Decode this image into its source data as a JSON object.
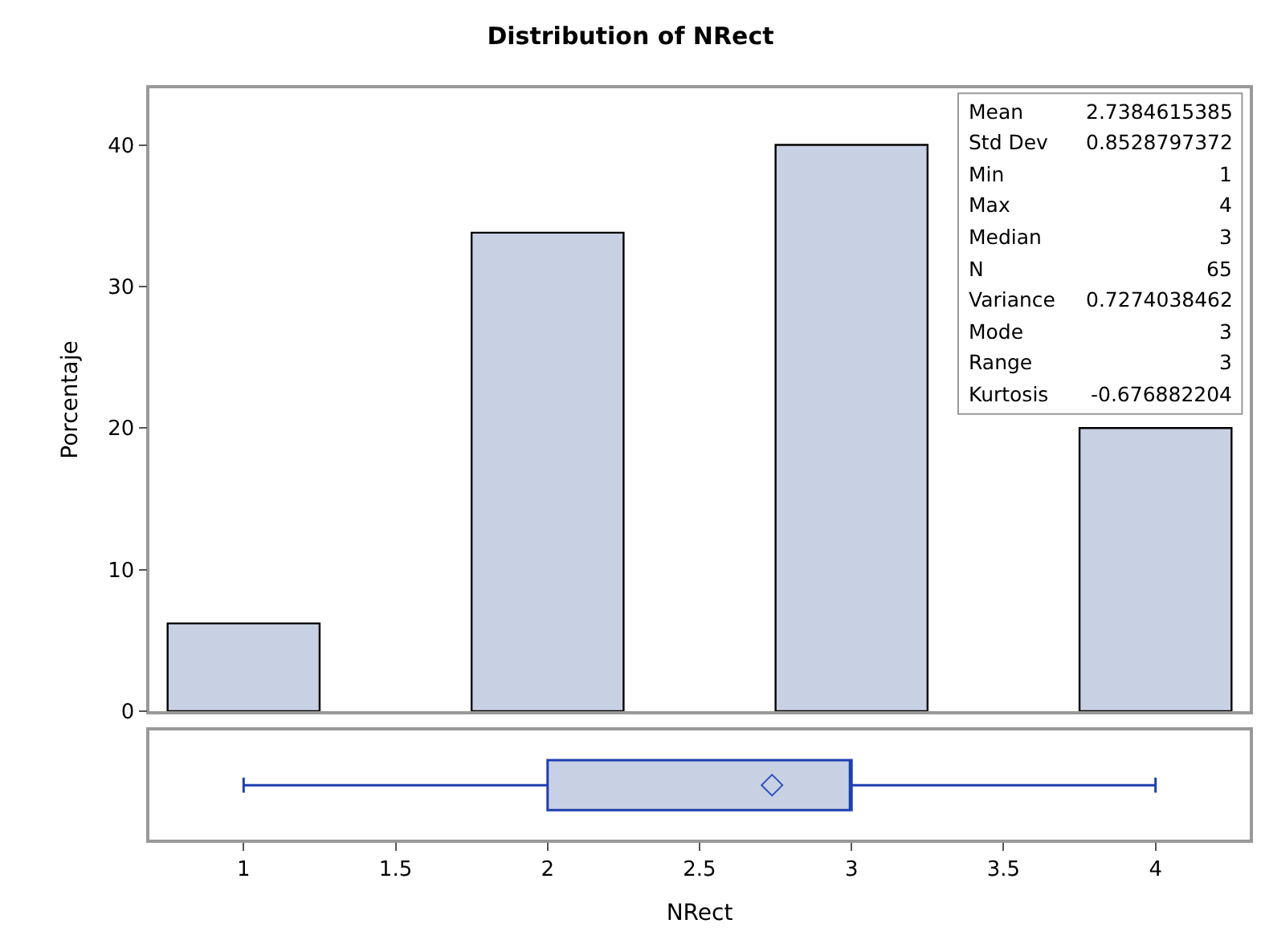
{
  "chart_data": [
    {
      "type": "bar",
      "title": "Distribution of NRect",
      "ylabel": "Porcentaje",
      "x": [
        1,
        2,
        3,
        4
      ],
      "series": [
        {
          "color": "#c8d1e3",
          "values": [
            6.2,
            33.8,
            40,
            20
          ]
        }
      ],
      "xlim": [
        0.69,
        4.31
      ],
      "ylim": [
        0,
        44
      ],
      "yticks": [
        0,
        10,
        20,
        30,
        40
      ],
      "tick_labels": "y",
      "annotations": [
        "Mean 2.7384615385",
        "Std Dev 0.8528797372",
        "Min 1",
        "Max 4",
        "Median 3",
        "N 65",
        "Variance 0.7274038462",
        "Mode 3",
        "Range 3",
        "Kurtosis -0.676882204"
      ]
    },
    {
      "type": "box",
      "orientation": "horizontal",
      "categories": [
        null
      ],
      "xlabel": "NRect",
      "series": [
        {
          "color": "#c8d1e3",
          "boxes": [
            {
              "low": 1,
              "q1": 2,
              "median": 3,
              "q3": 3,
              "high": 4,
              "mean": 2.7384615385
            }
          ]
        }
      ],
      "xlim": [
        0.69,
        4.31
      ],
      "xticks": [
        1,
        1.5,
        2,
        2.5,
        3,
        3.5,
        4
      ],
      "tick_labels": "x"
    }
  ]
}
